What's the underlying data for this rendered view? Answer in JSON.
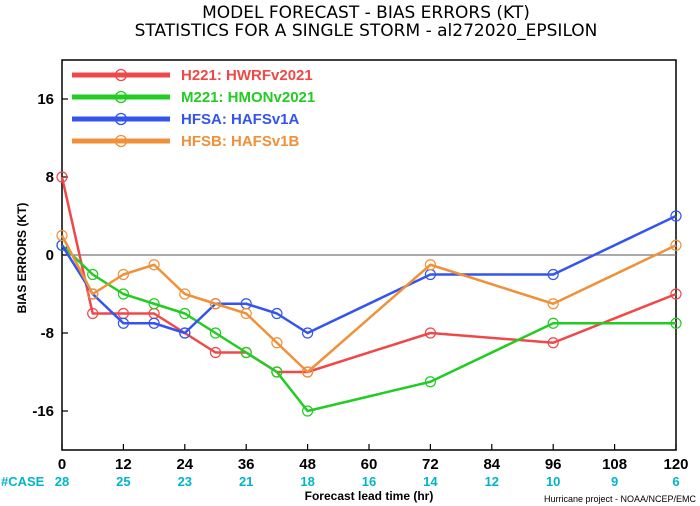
{
  "chart_data": {
    "type": "line",
    "title": "MODEL FORECAST - BIAS ERRORS (KT)",
    "subtitle": "STATISTICS FOR A SINGLE STORM - al272020_EPSILON",
    "xlabel": "Forecast lead time (hr)",
    "ylabel": "BIAS ERRORS (KT)",
    "xlim": [
      0,
      120
    ],
    "ylim": [
      -20,
      20
    ],
    "xticks": [
      0,
      12,
      24,
      36,
      48,
      60,
      72,
      84,
      96,
      108,
      120
    ],
    "yticks": [
      -16,
      -8,
      0,
      8,
      16
    ],
    "grid": false,
    "legend": "top-left",
    "series": [
      {
        "name": "H221: HWRFv2021",
        "color": "#f04848",
        "x": [
          0,
          6,
          12,
          18,
          24,
          30,
          36,
          42,
          48,
          72,
          96,
          120
        ],
        "y": [
          8,
          -6,
          -6,
          -6,
          -8,
          -10,
          -10,
          -12,
          -12,
          -8,
          -9,
          -4
        ]
      },
      {
        "name": "M221: HMONv2021",
        "color": "#22cc22",
        "x": [
          0,
          6,
          12,
          18,
          24,
          30,
          36,
          42,
          48,
          72,
          96,
          120
        ],
        "y": [
          1,
          -2,
          -4,
          -5,
          -6,
          -8,
          -10,
          -12,
          -16,
          -13,
          -7,
          -7
        ]
      },
      {
        "name": "HFSA: HAFSv1A",
        "color": "#3355ee",
        "x": [
          0,
          6,
          12,
          18,
          24,
          30,
          36,
          42,
          48,
          72,
          96,
          120
        ],
        "y": [
          1,
          -4,
          -7,
          -7,
          -8,
          -5,
          -5,
          -6,
          -8,
          -2,
          -2,
          4
        ]
      },
      {
        "name": "HFSB: HAFSv1B",
        "color": "#f0913a",
        "x": [
          0,
          6,
          12,
          18,
          24,
          30,
          36,
          42,
          48,
          72,
          96,
          120
        ],
        "y": [
          2,
          -4,
          -2,
          -1,
          -4,
          -5,
          -6,
          -9,
          -12,
          -1,
          -5,
          1
        ]
      }
    ],
    "case_label": "#CASE",
    "case_counts": [
      {
        "x": 0,
        "n": "28"
      },
      {
        "x": 12,
        "n": "25"
      },
      {
        "x": 24,
        "n": "23"
      },
      {
        "x": 36,
        "n": "21"
      },
      {
        "x": 48,
        "n": "18"
      },
      {
        "x": 60,
        "n": "16"
      },
      {
        "x": 72,
        "n": "14"
      },
      {
        "x": 84,
        "n": "12"
      },
      {
        "x": 96,
        "n": "10"
      },
      {
        "x": 108,
        "n": "9"
      },
      {
        "x": 120,
        "n": "6"
      }
    ],
    "credit": "Hurricane project - NOAA/NCEP/EMC"
  }
}
